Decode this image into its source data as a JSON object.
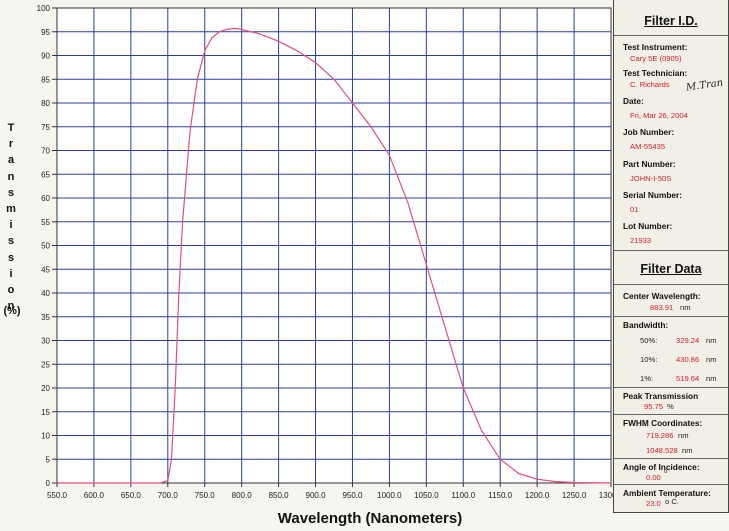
{
  "chart_data": {
    "type": "line",
    "xlabel": "Wavelength  (Nanometers)",
    "ylabel_letters": [
      "T",
      "r",
      "a",
      "n",
      "s",
      "m",
      "i",
      "s",
      "s",
      "i",
      "o",
      "n"
    ],
    "ylabel_unit": "(%)",
    "xlim": [
      550,
      1300
    ],
    "ylim": [
      0,
      100
    ],
    "xticks": [
      "550.0",
      "600.0",
      "650.0",
      "700.0",
      "750.0",
      "800.0",
      "850.0",
      "900.0",
      "950.0",
      "1000.0",
      "1050.0",
      "1100.0",
      "1150.0",
      "1200.0",
      "1250.0",
      "1300.0"
    ],
    "yticks": [
      "0",
      "5",
      "10",
      "15",
      "20",
      "25",
      "30",
      "35",
      "40",
      "45",
      "50",
      "55",
      "60",
      "65",
      "70",
      "75",
      "80",
      "85",
      "90",
      "95",
      "100"
    ],
    "grid": true,
    "series": [
      {
        "color": "#e0507a",
        "x": [
          550,
          690,
          700,
          705,
          710,
          715,
          720,
          730,
          740,
          750,
          760,
          770,
          780,
          790,
          800,
          825,
          850,
          875,
          900,
          925,
          950,
          975,
          1000,
          1025,
          1050,
          1075,
          1100,
          1125,
          1150,
          1175,
          1200,
          1225,
          1250,
          1300
        ],
        "y": [
          0,
          0,
          0.5,
          5,
          20,
          40,
          55,
          74,
          85,
          91,
          93.8,
          95,
          95.5,
          95.7,
          95.5,
          94.5,
          93,
          91,
          88.5,
          85,
          80,
          75,
          69,
          59,
          46,
          33,
          20,
          11,
          5,
          2,
          0.8,
          0.3,
          0.1,
          0
        ]
      }
    ]
  },
  "panel": {
    "filter_id": {
      "title": "Filter I.D.",
      "test_instrument_label": "Test Instrument:",
      "test_instrument": "Cary 5E (0905)",
      "test_technician_label": "Test Technician:",
      "test_technician": "C. Richards",
      "date_label": "Date:",
      "date": "Fri, Mar 26, 2004",
      "job_number_label": "Job Number:",
      "job_number": "AM-55435",
      "part_number_label": "Part Number:",
      "part_number": "JOHN-I-50S",
      "serial_number_label": "Serial Number:",
      "serial_number": "01",
      "lot_number_label": "Lot Number:",
      "lot_number": "21933"
    },
    "filter_data": {
      "title": "Filter Data",
      "center_wavelength_label": "Center Wavelength:",
      "center_wavelength": "883.91",
      "center_wavelength_unit": "nm",
      "bandwidth_label": "Bandwidth:",
      "bw50_label": "50%:",
      "bw50": "329.24",
      "bw10_label": "10%:",
      "bw10": "430.86",
      "bw1_label": "1%:",
      "bw1": "519.64",
      "bw_unit": "nm",
      "peak_label": "Peak Transmission",
      "peak": "95.75",
      "peak_unit": "%",
      "fwhm_label": "FWHM Coordinates:",
      "fwhm1": "719.286",
      "fwhm2": "1048.528",
      "fwhm_unit": "nm",
      "aoi_label": "Angle of Incidence:",
      "aoi": "0.00",
      "aoi_unit": "o",
      "temp_label": "Ambient Temperature:",
      "temp": "23.0",
      "temp_unit": "o  C."
    }
  }
}
